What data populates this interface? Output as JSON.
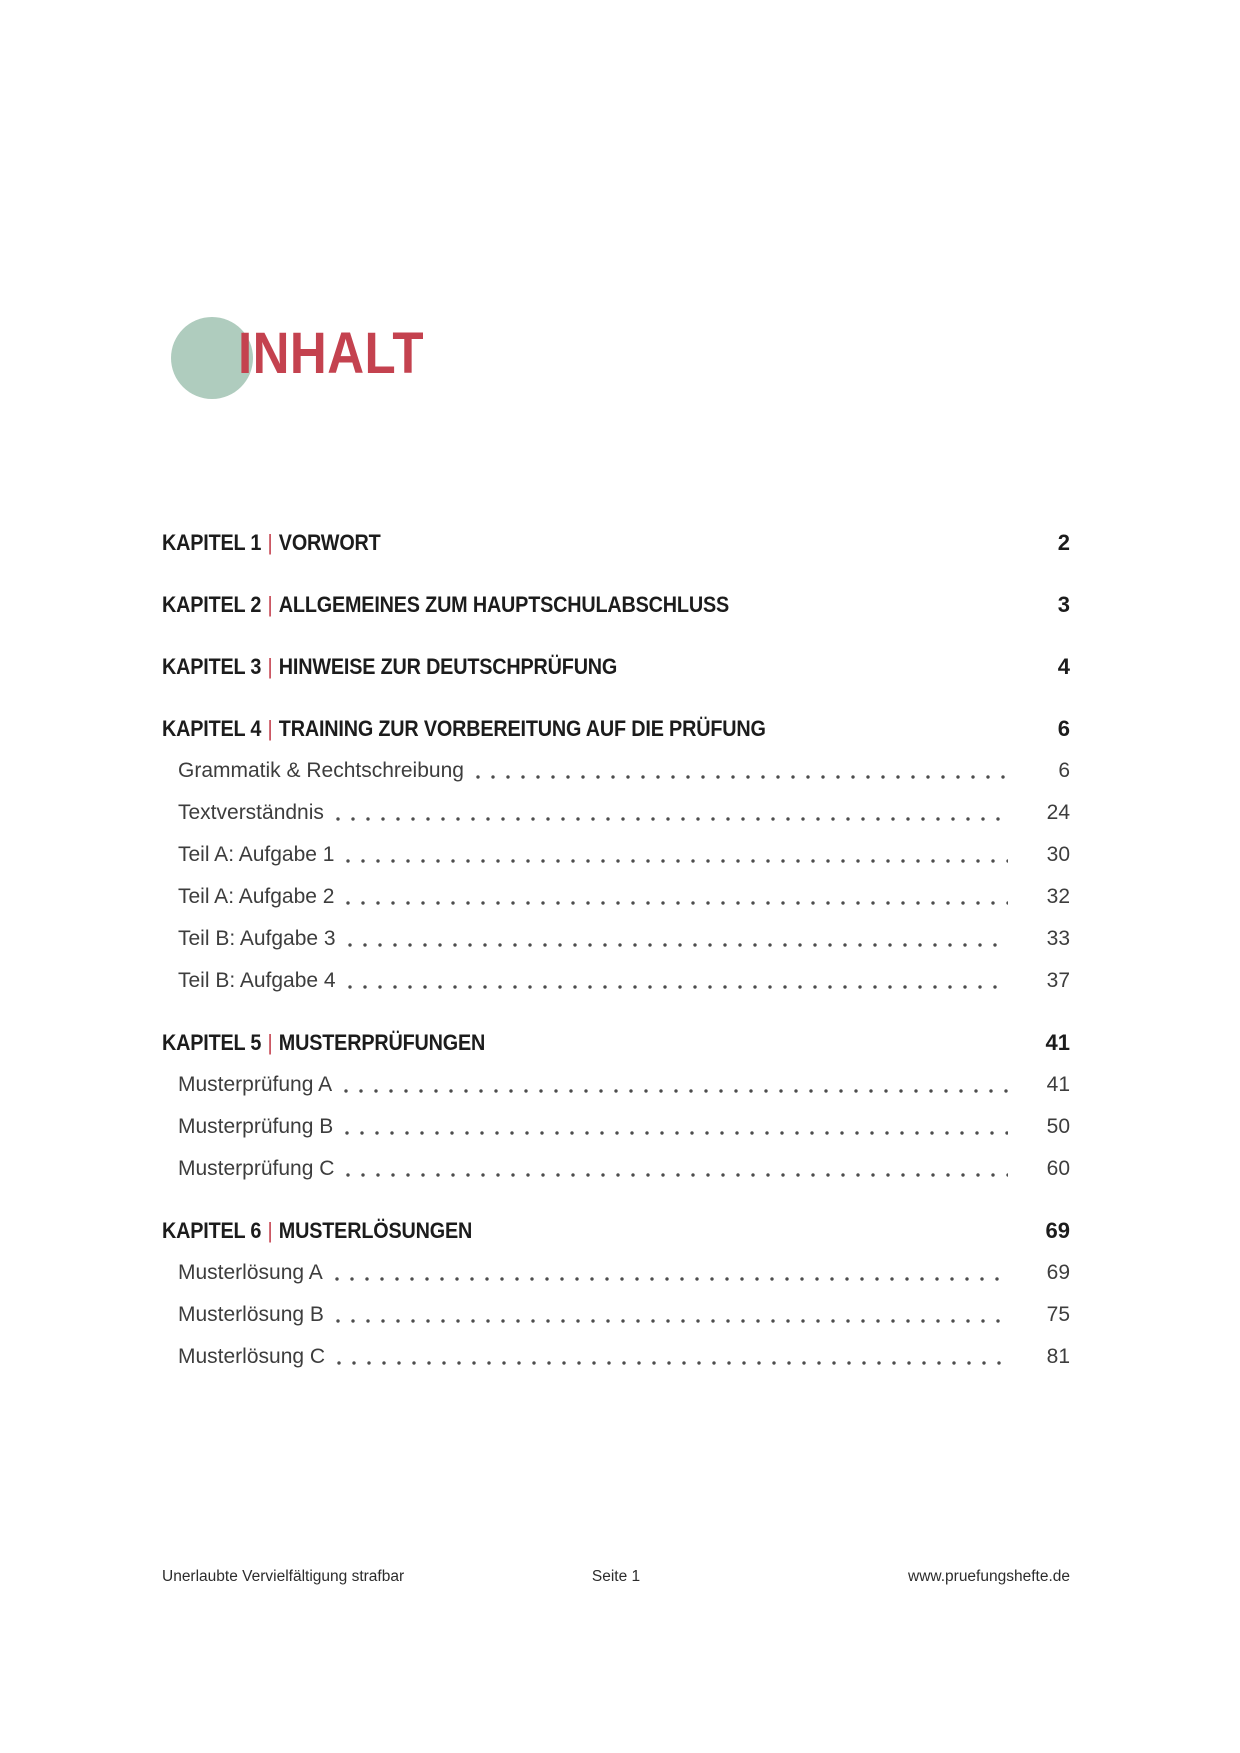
{
  "page": {
    "title": "INHALT",
    "accent_red": "#c4424f",
    "circle_green": "#afccbe"
  },
  "toc": {
    "items": [
      {
        "kind": "chapter",
        "prefix": "KAPITEL 1",
        "separator": "|",
        "title": "VORWORT",
        "page": "2"
      },
      {
        "kind": "chapter",
        "prefix": "KAPITEL 2",
        "separator": "|",
        "title": "ALLGEMEINES ZUM HAUPTSCHULABSCHLUSS",
        "page": "3"
      },
      {
        "kind": "chapter",
        "prefix": "KAPITEL 3",
        "separator": "|",
        "title": "HINWEISE ZUR DEUTSCHPRÜFUNG",
        "page": "4"
      },
      {
        "kind": "chapter",
        "prefix": "KAPITEL 4",
        "separator": "|",
        "title": "TRAINING ZUR VORBEREITUNG AUF DIE PRÜFUNG",
        "page": "6"
      },
      {
        "kind": "sub",
        "label": "Grammatik & Rechtschreibung",
        "page": "6"
      },
      {
        "kind": "sub",
        "label": "Textverständnis",
        "page": "24"
      },
      {
        "kind": "sub",
        "label": "Teil A: Aufgabe 1",
        "page": "30"
      },
      {
        "kind": "sub",
        "label": "Teil A: Aufgabe 2",
        "page": "32"
      },
      {
        "kind": "sub",
        "label": "Teil B: Aufgabe 3",
        "page": "33"
      },
      {
        "kind": "sub",
        "label": "Teil B: Aufgabe 4",
        "page": "37"
      },
      {
        "kind": "chapter",
        "prefix": "KAPITEL 5",
        "separator": "|",
        "title": "MUSTERPRÜFUNGEN",
        "page": "41"
      },
      {
        "kind": "sub",
        "label": "Musterprüfung A",
        "page": "41"
      },
      {
        "kind": "sub",
        "label": "Musterprüfung B",
        "page": "50"
      },
      {
        "kind": "sub",
        "label": "Musterprüfung C",
        "page": "60"
      },
      {
        "kind": "chapter",
        "prefix": "KAPITEL 6",
        "separator": "|",
        "title": "MUSTERLÖSUNGEN",
        "page": "69"
      },
      {
        "kind": "sub",
        "label": "Musterlösung A",
        "page": "69"
      },
      {
        "kind": "sub",
        "label": "Musterlösung B",
        "page": "75"
      },
      {
        "kind": "sub",
        "label": "Musterlösung C",
        "page": "81"
      }
    ]
  },
  "footer": {
    "left": "Unerlaubte Vervielfältigung strafbar",
    "center": "Seite 1",
    "right": "www.pruefungshefte.de"
  }
}
